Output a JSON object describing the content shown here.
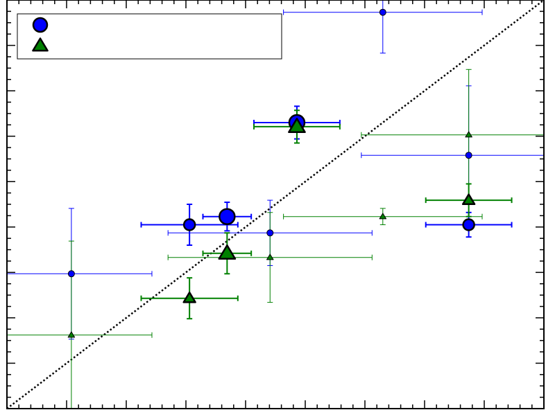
{
  "chart_data": {
    "type": "scatter",
    "title": "",
    "xlabel": "",
    "ylabel": "",
    "xlim": [
      0,
      1
    ],
    "ylim": [
      0,
      1
    ],
    "grid": false,
    "legend_position": "top-left",
    "reference_line": {
      "type": "identity",
      "style": "dotted",
      "color": "#000000"
    },
    "x_ticks": {
      "major": 9,
      "minor_per_major": 4
    },
    "y_ticks": {
      "major": 9,
      "minor_per_major": 3
    },
    "series": [
      {
        "name": "",
        "marker": "circle",
        "color": "#0000ff",
        "edge_color": "#000000",
        "error_color": "#0000ff",
        "points": [
          {
            "x": 0.12,
            "y": 0.33,
            "xerr": 0.15,
            "yerr": [
              0.16,
              0.16
            ],
            "size": 1
          },
          {
            "x": 0.34,
            "y": 0.45,
            "xerr": 0.09,
            "yerr": [
              0.05,
              0.05
            ],
            "size": 2
          },
          {
            "x": 0.41,
            "y": 0.47,
            "xerr": 0.045,
            "yerr": [
              0.035,
              0.035
            ],
            "size": 3
          },
          {
            "x": 0.54,
            "y": 0.7,
            "xerr": 0.08,
            "yerr": [
              0.04,
              0.04
            ],
            "size": 3
          },
          {
            "x": 0.49,
            "y": 0.43,
            "xerr": 0.19,
            "yerr": [
              0.08,
              0.08
            ],
            "size": 1
          },
          {
            "x": 0.7,
            "y": 0.97,
            "xerr": 0.185,
            "yerr": [
              0.1,
              0.1
            ],
            "size": 1
          },
          {
            "x": 0.86,
            "y": 0.62,
            "xerr": 0.2,
            "yerr": [
              0.17,
              0.17
            ],
            "size": 1
          },
          {
            "x": 0.86,
            "y": 0.45,
            "xerr": 0.08,
            "yerr": [
              0.03,
              0.03
            ],
            "size": 2
          }
        ]
      },
      {
        "name": "",
        "marker": "triangle",
        "color": "#008000",
        "edge_color": "#000000",
        "error_color": "#008000",
        "points": [
          {
            "x": 0.12,
            "y": 0.18,
            "xerr": 0.15,
            "yerr": [
              0.23,
              0.23
            ],
            "size": 1
          },
          {
            "x": 0.34,
            "y": 0.27,
            "xerr": 0.09,
            "yerr": [
              0.05,
              0.05
            ],
            "size": 2
          },
          {
            "x": 0.41,
            "y": 0.38,
            "xerr": 0.045,
            "yerr": [
              0.05,
              0.05
            ],
            "size": 3
          },
          {
            "x": 0.54,
            "y": 0.69,
            "xerr": 0.08,
            "yerr": [
              0.04,
              0.04
            ],
            "size": 3
          },
          {
            "x": 0.49,
            "y": 0.37,
            "xerr": 0.19,
            "yerr": [
              0.11,
              0.11
            ],
            "size": 1
          },
          {
            "x": 0.7,
            "y": 0.47,
            "xerr": 0.185,
            "yerr": [
              0.02,
              0.02
            ],
            "size": 1
          },
          {
            "x": 0.86,
            "y": 0.67,
            "xerr": 0.2,
            "yerr": [
              0.16,
              0.16
            ],
            "size": 1
          },
          {
            "x": 0.86,
            "y": 0.51,
            "xerr": 0.08,
            "yerr": [
              0.04,
              0.04
            ],
            "size": 2
          }
        ]
      }
    ]
  }
}
